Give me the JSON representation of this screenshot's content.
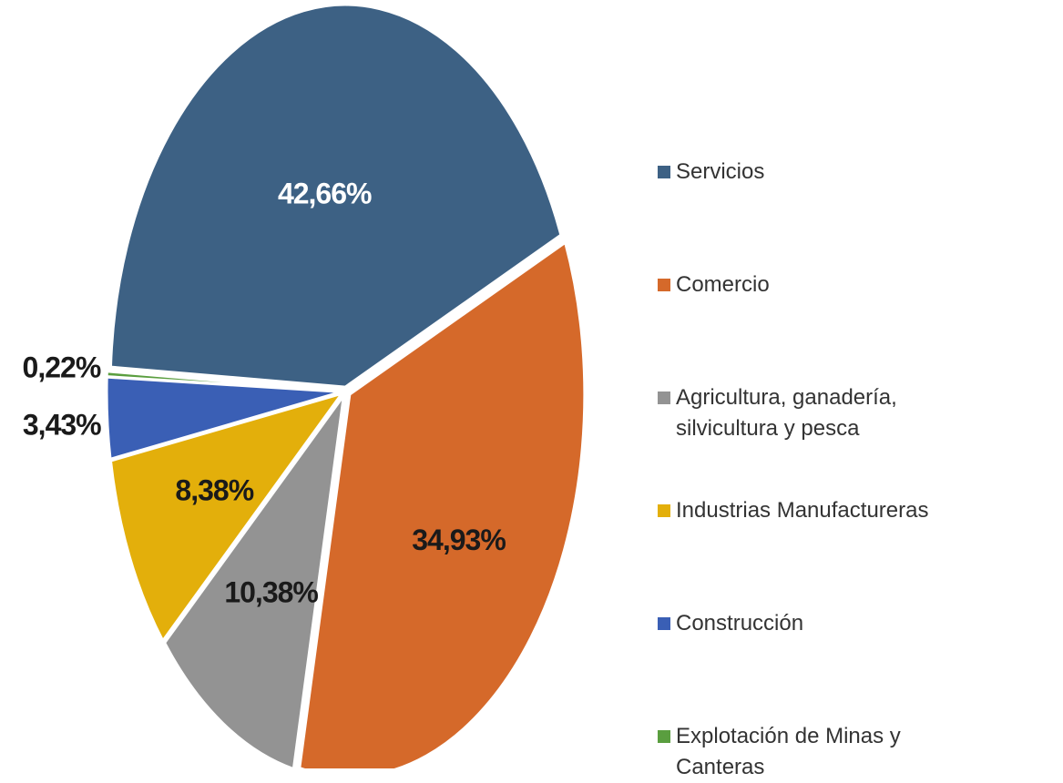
{
  "chart_data": {
    "type": "pie",
    "categories": [
      "Servicios",
      "Comercio",
      "Agricultura, ganadería, silvicultura y pesca",
      "Industrias Manufactureras",
      "Construcción",
      "Explotación de Minas y Canteras"
    ],
    "values": [
      42.66,
      34.93,
      10.38,
      8.38,
      3.43,
      0.22
    ],
    "value_labels": [
      "42,66%",
      "34,93%",
      "10,38%",
      "8,38%",
      "3,43%",
      "0,22%"
    ],
    "colors": [
      "#3d6184",
      "#d5692a",
      "#939393",
      "#e3af0b",
      "#3a5fb5",
      "#5a9e3f"
    ],
    "legend": "right"
  }
}
